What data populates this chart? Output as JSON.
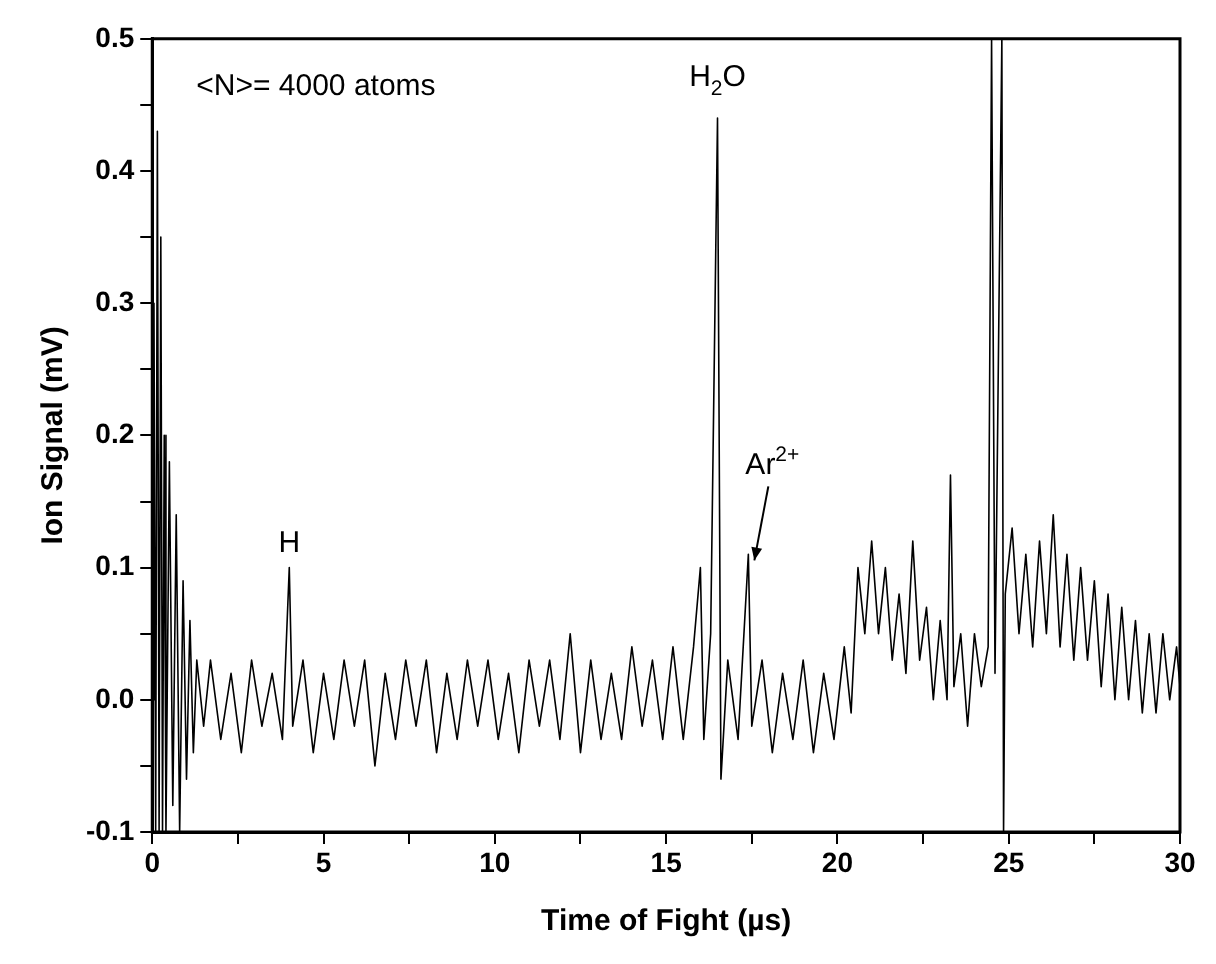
{
  "chart_data": {
    "type": "line",
    "xlabel": "Time of Fight (µs)",
    "ylabel": "Ion Signal (mV)",
    "xlim": [
      0,
      30
    ],
    "xticks": [
      0,
      {
        "value": 2.5,
        "label": null
      },
      5,
      {
        "value": 7.5,
        "label": null
      },
      10,
      {
        "value": 12.5,
        "label": null
      },
      15,
      {
        "value": 17.5,
        "label": null
      },
      20,
      {
        "value": 22.5,
        "label": null
      },
      25,
      {
        "value": 27.5,
        "label": null
      },
      30
    ],
    "ylim": [
      -0.1,
      0.5
    ],
    "yticks": [
      {
        "value": -0.1,
        "label": "-0.1"
      },
      {
        "value": -0.05,
        "label": null
      },
      {
        "value": 0,
        "label": "0.0"
      },
      {
        "value": 0.05,
        "label": null
      },
      0.1,
      {
        "value": 0.15,
        "label": null
      },
      0.2,
      {
        "value": 0.25,
        "label": null
      },
      0.3,
      {
        "value": 0.35,
        "label": null
      },
      0.4,
      {
        "value": 0.45,
        "label": null
      },
      0.5
    ],
    "grid": false,
    "legend": false,
    "annotations": [
      "<N>= 4000 atoms",
      {
        "text": "H",
        "x": 4.0,
        "y": 0.1
      },
      {
        "text": "H$_{2}$O",
        "x": 16.5,
        "y": 0.44
      },
      {
        "text": "Ar$^{2+}$",
        "x": 17.4,
        "y": 0.11
      }
    ],
    "series": [
      {
        "color": "#000000",
        "x": [
          0,
          0.05,
          0.1,
          0.15,
          0.2,
          0.25,
          0.3,
          0.35,
          0.4,
          0.5,
          0.6,
          0.7,
          0.8,
          0.9,
          1.0,
          1.1,
          1.2,
          1.3,
          1.5,
          1.7,
          2.0,
          2.3,
          2.6,
          2.9,
          3.2,
          3.5,
          3.8,
          4.0,
          4.1,
          4.4,
          4.7,
          5.0,
          5.3,
          5.6,
          5.9,
          6.2,
          6.5,
          6.8,
          7.1,
          7.4,
          7.7,
          8.0,
          8.3,
          8.6,
          8.9,
          9.2,
          9.5,
          9.8,
          10.1,
          10.4,
          10.7,
          11.0,
          11.3,
          11.6,
          11.9,
          12.2,
          12.5,
          12.8,
          13.1,
          13.4,
          13.7,
          14.0,
          14.3,
          14.6,
          14.9,
          15.2,
          15.5,
          15.8,
          16.0,
          16.1,
          16.3,
          16.5,
          16.6,
          16.8,
          17.1,
          17.4,
          17.5,
          17.8,
          18.1,
          18.4,
          18.7,
          19.0,
          19.3,
          19.6,
          19.9,
          20.2,
          20.4,
          20.6,
          20.8,
          21.0,
          21.2,
          21.4,
          21.6,
          21.8,
          22.0,
          22.2,
          22.4,
          22.6,
          22.8,
          23.0,
          23.2,
          23.3,
          23.4,
          23.6,
          23.8,
          24.0,
          24.2,
          24.4,
          24.5,
          24.6,
          24.8,
          24.85,
          24.9,
          25.1,
          25.3,
          25.5,
          25.7,
          25.9,
          26.1,
          26.3,
          26.5,
          26.7,
          26.9,
          27.1,
          27.3,
          27.5,
          27.7,
          27.9,
          28.1,
          28.3,
          28.5,
          28.7,
          28.9,
          29.1,
          29.3,
          29.5,
          29.7,
          29.9,
          30
        ],
        "values": [
          0,
          0.3,
          -0.1,
          0.43,
          -0.1,
          0.35,
          -0.1,
          0.2,
          -0.1,
          0.18,
          -0.08,
          0.14,
          -0.1,
          0.09,
          -0.06,
          0.06,
          -0.04,
          0.03,
          -0.02,
          0.03,
          -0.03,
          0.02,
          -0.04,
          0.03,
          -0.02,
          0.02,
          -0.03,
          0.1,
          -0.02,
          0.03,
          -0.04,
          0.02,
          -0.03,
          0.03,
          -0.02,
          0.03,
          -0.05,
          0.02,
          -0.03,
          0.03,
          -0.02,
          0.03,
          -0.04,
          0.02,
          -0.03,
          0.03,
          -0.02,
          0.03,
          -0.03,
          0.02,
          -0.04,
          0.03,
          -0.02,
          0.03,
          -0.03,
          0.05,
          -0.04,
          0.03,
          -0.03,
          0.02,
          -0.03,
          0.04,
          -0.02,
          0.03,
          -0.03,
          0.04,
          -0.03,
          0.04,
          0.1,
          -0.03,
          0.05,
          0.44,
          -0.06,
          0.03,
          -0.03,
          0.11,
          -0.02,
          0.03,
          -0.04,
          0.02,
          -0.03,
          0.03,
          -0.04,
          0.02,
          -0.03,
          0.04,
          -0.01,
          0.1,
          0.05,
          0.12,
          0.05,
          0.1,
          0.03,
          0.08,
          0.02,
          0.12,
          0.03,
          0.07,
          0.0,
          0.06,
          0.0,
          0.17,
          0.01,
          0.05,
          -0.02,
          0.05,
          0.01,
          0.04,
          0.5,
          0.02,
          0.5,
          -0.1,
          0.08,
          0.13,
          0.05,
          0.11,
          0.04,
          0.12,
          0.05,
          0.14,
          0.04,
          0.11,
          0.03,
          0.1,
          0.03,
          0.09,
          0.01,
          0.08,
          0.0,
          0.07,
          0.0,
          0.06,
          -0.01,
          0.05,
          -0.01,
          0.05,
          0.0,
          0.04,
          0.01
        ]
      }
    ]
  }
}
